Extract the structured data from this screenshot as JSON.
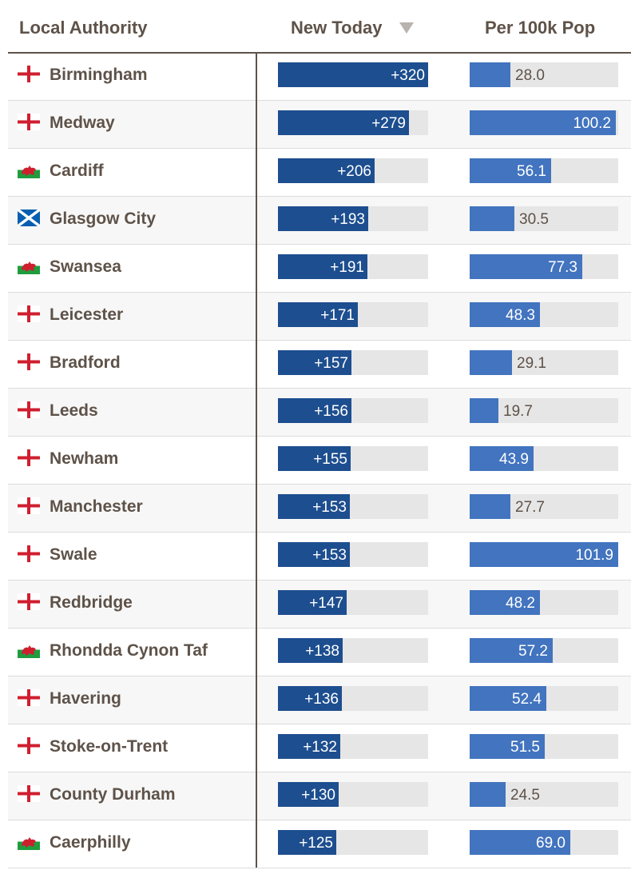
{
  "header": {
    "name_label": "Local Authority",
    "new_today_label": "New Today",
    "per_100k_label": "Per 100k Pop",
    "sort_icon": "triangle-down-icon"
  },
  "scale": {
    "new_today_max": 320,
    "per_100k_max": 101.9
  },
  "colors": {
    "new_today_bar": "#1d4e8f",
    "per_100k_bar": "#4274bf",
    "track": "#e6e6e6",
    "text": "#5e5249"
  },
  "rows": [
    {
      "flag": "england",
      "name": "Birmingham",
      "new_today": 320,
      "new_today_label": "+320",
      "per_100k": 28.0,
      "per_100k_label": "28.0"
    },
    {
      "flag": "england",
      "name": "Medway",
      "new_today": 279,
      "new_today_label": "+279",
      "per_100k": 100.2,
      "per_100k_label": "100.2"
    },
    {
      "flag": "wales",
      "name": "Cardiff",
      "new_today": 206,
      "new_today_label": "+206",
      "per_100k": 56.1,
      "per_100k_label": "56.1"
    },
    {
      "flag": "scotland",
      "name": "Glasgow City",
      "new_today": 193,
      "new_today_label": "+193",
      "per_100k": 30.5,
      "per_100k_label": "30.5"
    },
    {
      "flag": "wales",
      "name": "Swansea",
      "new_today": 191,
      "new_today_label": "+191",
      "per_100k": 77.3,
      "per_100k_label": "77.3"
    },
    {
      "flag": "england",
      "name": "Leicester",
      "new_today": 171,
      "new_today_label": "+171",
      "per_100k": 48.3,
      "per_100k_label": "48.3"
    },
    {
      "flag": "england",
      "name": "Bradford",
      "new_today": 157,
      "new_today_label": "+157",
      "per_100k": 29.1,
      "per_100k_label": "29.1"
    },
    {
      "flag": "england",
      "name": "Leeds",
      "new_today": 156,
      "new_today_label": "+156",
      "per_100k": 19.7,
      "per_100k_label": "19.7"
    },
    {
      "flag": "england",
      "name": "Newham",
      "new_today": 155,
      "new_today_label": "+155",
      "per_100k": 43.9,
      "per_100k_label": "43.9"
    },
    {
      "flag": "england",
      "name": "Manchester",
      "new_today": 153,
      "new_today_label": "+153",
      "per_100k": 27.7,
      "per_100k_label": "27.7"
    },
    {
      "flag": "england",
      "name": "Swale",
      "new_today": 153,
      "new_today_label": "+153",
      "per_100k": 101.9,
      "per_100k_label": "101.9"
    },
    {
      "flag": "england",
      "name": "Redbridge",
      "new_today": 147,
      "new_today_label": "+147",
      "per_100k": 48.2,
      "per_100k_label": "48.2"
    },
    {
      "flag": "wales",
      "name": "Rhondda Cynon Taf",
      "new_today": 138,
      "new_today_label": "+138",
      "per_100k": 57.2,
      "per_100k_label": "57.2"
    },
    {
      "flag": "england",
      "name": "Havering",
      "new_today": 136,
      "new_today_label": "+136",
      "per_100k": 52.4,
      "per_100k_label": "52.4"
    },
    {
      "flag": "england",
      "name": "Stoke-on-Trent",
      "new_today": 132,
      "new_today_label": "+132",
      "per_100k": 51.5,
      "per_100k_label": "51.5"
    },
    {
      "flag": "england",
      "name": "County Durham",
      "new_today": 130,
      "new_today_label": "+130",
      "per_100k": 24.5,
      "per_100k_label": "24.5"
    },
    {
      "flag": "wales",
      "name": "Caerphilly",
      "new_today": 125,
      "new_today_label": "+125",
      "per_100k": 69.0,
      "per_100k_label": "69.0"
    }
  ]
}
